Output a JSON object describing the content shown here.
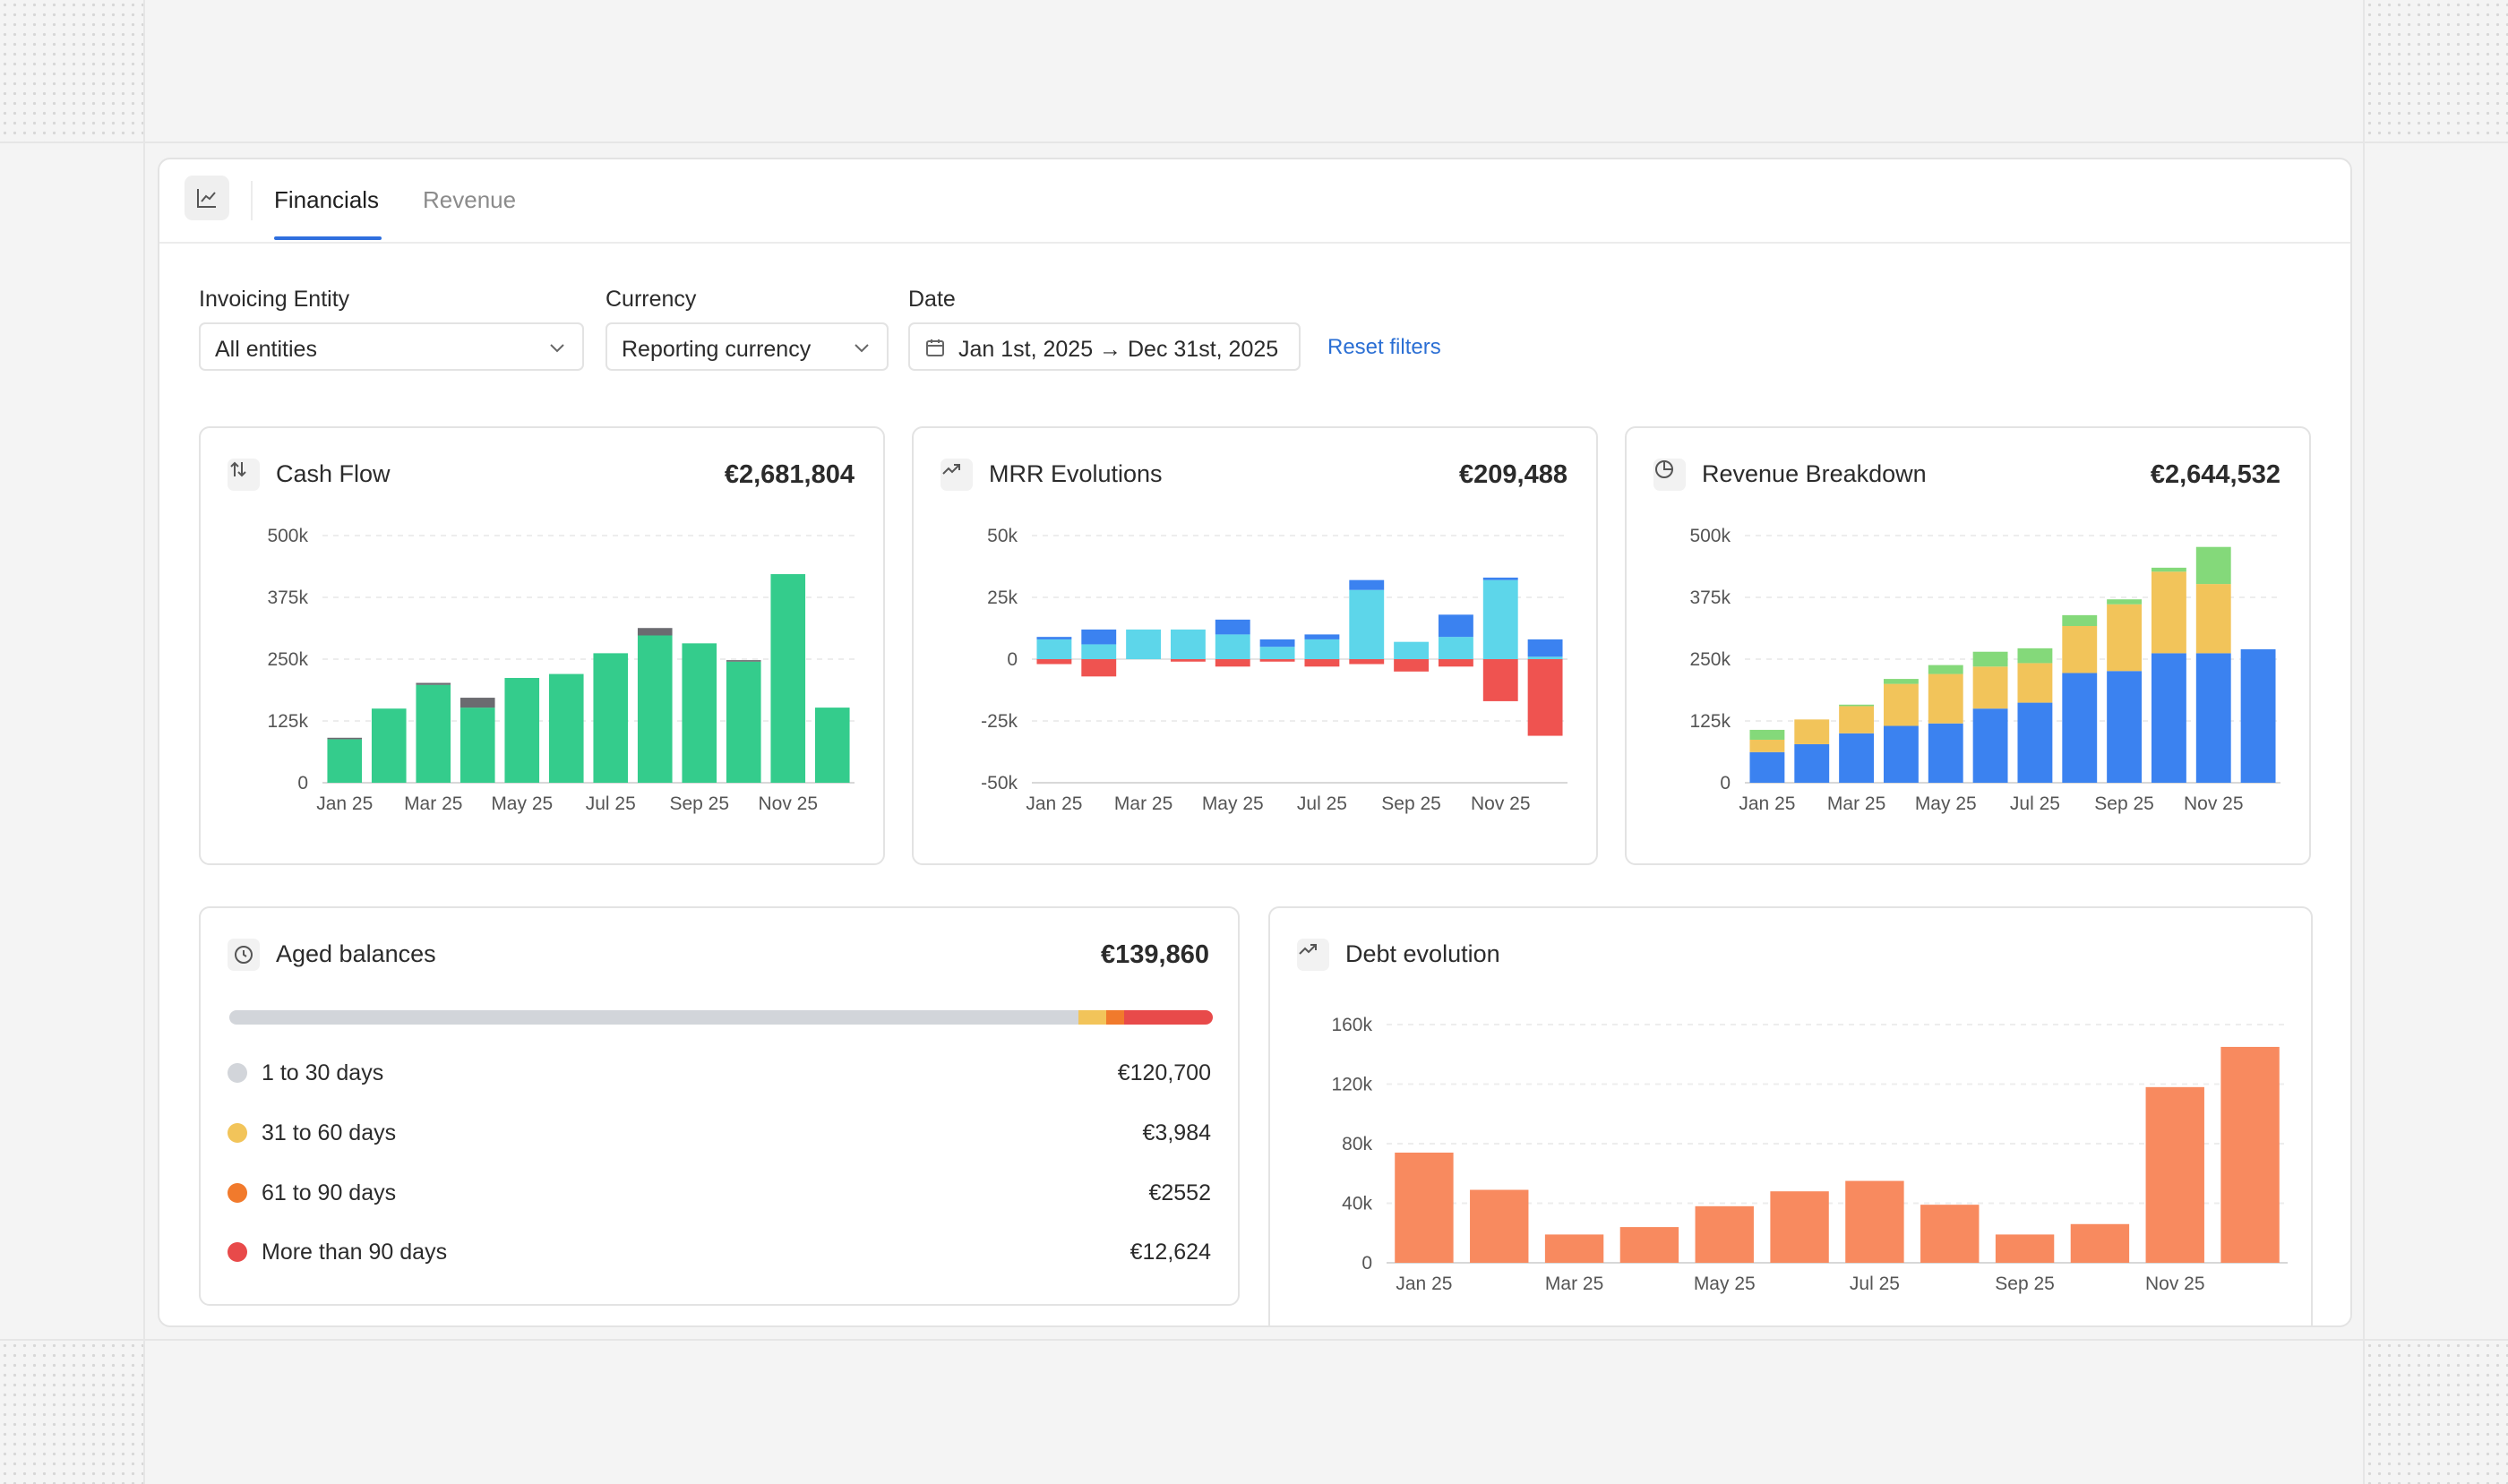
{
  "tabs": {
    "active": "Financials",
    "inactive": "Revenue"
  },
  "filters": {
    "entity": {
      "label": "Invoicing Entity",
      "value": "All entities"
    },
    "currency": {
      "label": "Currency",
      "value": "Reporting currency"
    },
    "date": {
      "label": "Date",
      "value": "Jan 1st, 2025 → Dec 31st, 2025"
    },
    "reset": "Reset filters"
  },
  "panels": {
    "cashflow": {
      "title": "Cash Flow",
      "value": "€2,681,804"
    },
    "mrr": {
      "title": "MRR Evolutions",
      "value": "€209,488"
    },
    "revenue": {
      "title": "Revenue Breakdown",
      "value": "€2,644,532"
    },
    "aged": {
      "title": "Aged balances",
      "value": "€139,860"
    },
    "debt": {
      "title": "Debt evolution"
    }
  },
  "aged_balances": [
    {
      "label": "1 to 30 days",
      "amount": "€120,700",
      "value": 120700,
      "color": "#d2d5da"
    },
    {
      "label": "31 to 60 days",
      "amount": "€3,984",
      "value": 3984,
      "color": "#f2c45a"
    },
    {
      "label": "61 to 90 days",
      "amount": "€2552",
      "value": 2552,
      "color": "#f17a2c"
    },
    {
      "label": "More than 90 days",
      "amount": "€12,624",
      "value": 12624,
      "color": "#e84a4a"
    }
  ],
  "colors": {
    "accent": "#2f6fde",
    "green": "#34cc8c",
    "gray": "#6b6b70",
    "cyan": "#5dd6ea",
    "blue": "#3b82f0",
    "red": "#ef5350",
    "yellow": "#f2c45a",
    "lightgreen": "#84d97a",
    "orange": "#f88a5f"
  },
  "chart_data": [
    {
      "type": "bar",
      "title": "Cash Flow",
      "categories": [
        "Jan 25",
        "Feb 25",
        "Mar 25",
        "Apr 25",
        "May 25",
        "Jun 25",
        "Jul 25",
        "Aug 25",
        "Sep 25",
        "Oct 25",
        "Nov 25",
        "Dec 25"
      ],
      "x_tick_labels": [
        "Jan 25",
        "Mar 25",
        "May 25",
        "Jul 25",
        "Sep 25",
        "Nov 25"
      ],
      "y_tick_labels": [
        "0",
        "125k",
        "250k",
        "375k",
        "500k"
      ],
      "ylim": [
        0,
        500000
      ],
      "series": [
        {
          "values": [
            88000,
            150000,
            198000,
            152000,
            212000,
            220000,
            262000,
            298000,
            282000,
            245000,
            422000,
            152000
          ]
        },
        {
          "values": [
            3000,
            0,
            4000,
            20000,
            0,
            0,
            0,
            15000,
            0,
            3000,
            0,
            0
          ]
        }
      ]
    },
    {
      "type": "bar",
      "title": "MRR Evolutions",
      "categories": [
        "Jan 25",
        "Feb 25",
        "Mar 25",
        "Apr 25",
        "May 25",
        "Jun 25",
        "Jul 25",
        "Aug 25",
        "Sep 25",
        "Oct 25",
        "Nov 25",
        "Dec 25"
      ],
      "x_tick_labels": [
        "Jan 25",
        "Mar 25",
        "May 25",
        "Jul 25",
        "Sep 25",
        "Nov 25"
      ],
      "y_tick_labels": [
        "-50k",
        "-25k",
        "0",
        "25k",
        "50k"
      ],
      "ylim": [
        -50000,
        50000
      ],
      "series": [
        {
          "values": [
            8000,
            6000,
            12000,
            12000,
            10000,
            5000,
            8000,
            28000,
            7000,
            9000,
            32000,
            1000
          ]
        },
        {
          "values": [
            1000,
            6000,
            0,
            0,
            6000,
            3000,
            2000,
            4000,
            0,
            9000,
            1000,
            7000
          ]
        },
        {
          "values": [
            -2000,
            -7000,
            0,
            -1000,
            -3000,
            -1000,
            -3000,
            -2000,
            -5000,
            -3000,
            -17000,
            -31000
          ]
        }
      ]
    },
    {
      "type": "bar",
      "title": "Revenue Breakdown",
      "categories": [
        "Jan 25",
        "Feb 25",
        "Mar 25",
        "Apr 25",
        "May 25",
        "Jun 25",
        "Jul 25",
        "Aug 25",
        "Sep 25",
        "Oct 25",
        "Nov 25",
        "Dec 25"
      ],
      "x_tick_labels": [
        "Jan 25",
        "Mar 25",
        "May 25",
        "Jul 25",
        "Sep 25",
        "Nov 25"
      ],
      "y_tick_labels": [
        "0",
        "125k",
        "250k",
        "375k",
        "500k"
      ],
      "ylim": [
        0,
        500000
      ],
      "series": [
        {
          "values": [
            62000,
            78000,
            100000,
            115000,
            120000,
            150000,
            162000,
            222000,
            226000,
            262000,
            262000,
            270000
          ]
        },
        {
          "values": [
            25000,
            50000,
            55000,
            85000,
            100000,
            85000,
            80000,
            95000,
            135000,
            165000,
            140000,
            0
          ]
        },
        {
          "values": [
            20000,
            0,
            3000,
            10000,
            18000,
            30000,
            30000,
            22000,
            10000,
            8000,
            75000,
            0
          ]
        }
      ]
    },
    {
      "type": "bar",
      "title": "Debt evolution",
      "categories": [
        "Jan 25",
        "Feb 25",
        "Mar 25",
        "Apr 25",
        "May 25",
        "Jun 25",
        "Jul 25",
        "Aug 25",
        "Sep 25",
        "Oct 25",
        "Nov 25",
        "Dec 25"
      ],
      "x_tick_labels": [
        "Jan 25",
        "Mar 25",
        "May 25",
        "Jul 25",
        "Sep 25",
        "Nov 25"
      ],
      "y_tick_labels": [
        "0",
        "40k",
        "80k",
        "120k",
        "160k"
      ],
      "ylim": [
        0,
        160000
      ],
      "series": [
        {
          "values": [
            74000,
            49000,
            19000,
            24000,
            38000,
            48000,
            55000,
            39000,
            19000,
            26000,
            118000,
            145000
          ]
        }
      ]
    }
  ]
}
